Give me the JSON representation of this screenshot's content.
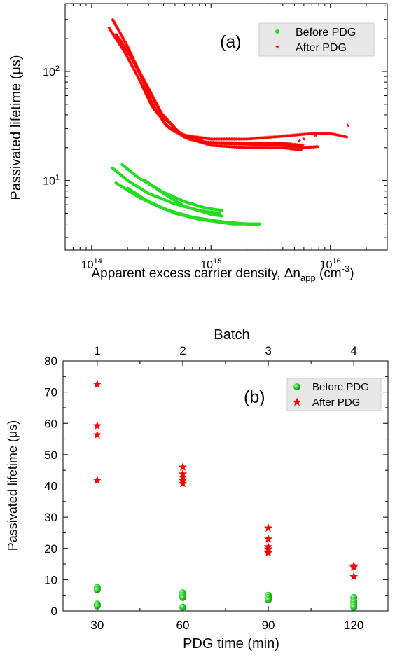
{
  "chart_data": [
    {
      "type": "scatter",
      "panel_label": "(a)",
      "xlabel": "Apparent excess carrier density, Δn",
      "xlabel_sub": "app",
      "xlabel_unit_open": " (cm",
      "xlabel_unit_sup": "-3",
      "xlabel_unit_close": ")",
      "ylabel": "Passivated lifetime (μs)",
      "x_scale": "log",
      "y_scale": "log",
      "xlim": [
        60000000000000.0,
        3e+16
      ],
      "ylim": [
        2.3,
        420
      ],
      "x_ticks": [
        {
          "value": 100000000000000.0,
          "base": "10",
          "exp": "14"
        },
        {
          "value": 1000000000000000.0,
          "base": "10",
          "exp": "15"
        },
        {
          "value": 1e+16,
          "base": "10",
          "exp": "16"
        }
      ],
      "y_ticks": [
        {
          "value": 10,
          "base": "10",
          "exp": "1"
        },
        {
          "value": 100,
          "base": "10",
          "exp": "2"
        }
      ],
      "legend_position": "top-right",
      "grid": false,
      "series": [
        {
          "name": "Before PDG",
          "color": "#22dd22",
          "marker": "circle",
          "curves": [
            [
              [
                150000000000000.0,
                13.0
              ],
              [
                200000000000000.0,
                10.0
              ],
              [
                300000000000000.0,
                7.6
              ],
              [
                500000000000000.0,
                6.1
              ],
              [
                800000000000000.0,
                5.3
              ],
              [
                1200000000000000.0,
                5.0
              ]
            ],
            [
              [
                180000000000000.0,
                14.0
              ],
              [
                250000000000000.0,
                10.5
              ],
              [
                400000000000000.0,
                7.8
              ],
              [
                600000000000000.0,
                6.4
              ],
              [
                900000000000000.0,
                5.6
              ],
              [
                1250000000000000.0,
                5.3
              ]
            ],
            [
              [
                280000000000000.0,
                10.0
              ],
              [
                400000000000000.0,
                7.6
              ],
              [
                600000000000000.0,
                5.8
              ],
              [
                1000000000000000.0,
                4.9
              ],
              [
                1250000000000000.0,
                4.7
              ]
            ],
            [
              [
                200000000000000.0,
                8.5
              ],
              [
                300000000000000.0,
                6.4
              ],
              [
                500000000000000.0,
                5.0
              ],
              [
                800000000000000.0,
                4.4
              ],
              [
                1500000000000000.0,
                4.0
              ],
              [
                2600000000000000.0,
                4.0
              ]
            ],
            [
              [
                160000000000000.0,
                9.5
              ],
              [
                250000000000000.0,
                7.0
              ],
              [
                400000000000000.0,
                5.5
              ],
              [
                700000000000000.0,
                4.6
              ],
              [
                1200000000000000.0,
                4.2
              ],
              [
                2500000000000000.0,
                3.9
              ]
            ]
          ]
        },
        {
          "name": "After PDG",
          "color": "#ff0000",
          "marker": "star",
          "curves": [
            [
              [
                150000000000000.0,
                300.0
              ],
              [
                200000000000000.0,
                170.0
              ],
              [
                250000000000000.0,
                100.0
              ],
              [
                320000000000000.0,
                52.0
              ],
              [
                420000000000000.0,
                32.0
              ],
              [
                600000000000000.0,
                26.0
              ],
              [
                1000000000000000.0,
                24.0
              ],
              [
                2000000000000000.0,
                24.0
              ],
              [
                4000000000000000.0,
                25.5
              ],
              [
                7000000000000000.0,
                27.0
              ],
              [
                1e+16,
                27.0
              ],
              [
                1.4e+16,
                25.0
              ]
            ],
            [
              [
                140000000000000.0,
                250.0
              ],
              [
                190000000000000.0,
                150.0
              ],
              [
                250000000000000.0,
                85.0
              ],
              [
                320000000000000.0,
                48.0
              ],
              [
                450000000000000.0,
                30.0
              ],
              [
                650000000000000.0,
                24.0
              ],
              [
                1000000000000000.0,
                22.0
              ],
              [
                2000000000000000.0,
                21.5
              ],
              [
                4000000000000000.0,
                21.0
              ],
              [
                6000000000000000.0,
                20.0
              ],
              [
                8000000000000000.0,
                20.5
              ]
            ],
            [
              [
                170000000000000.0,
                200.0
              ],
              [
                220000000000000.0,
                130.0
              ],
              [
                300000000000000.0,
                70.0
              ],
              [
                400000000000000.0,
                38.0
              ],
              [
                600000000000000.0,
                25.0
              ],
              [
                1000000000000000.0,
                21.0
              ],
              [
                2000000000000000.0,
                20.0
              ],
              [
                4000000000000000.0,
                20.0
              ],
              [
                5800000000000000.0,
                19.0
              ]
            ],
            [
              [
                160000000000000.0,
                220.0
              ],
              [
                210000000000000.0,
                140.0
              ],
              [
                280000000000000.0,
                78.0
              ],
              [
                380000000000000.0,
                42.0
              ],
              [
                550000000000000.0,
                27.0
              ],
              [
                900000000000000.0,
                22.5
              ],
              [
                2000000000000000.0,
                22.0
              ],
              [
                4000000000000000.0,
                22.0
              ],
              [
                6000000000000000.0,
                21.0
              ]
            ]
          ],
          "outliers": [
            [
              1.4e+16,
              32.0
            ],
            [
              7500000000000000.0,
              26.0
            ],
            [
              6000000000000000.0,
              24.0
            ],
            [
              5500000000000000.0,
              23.0
            ]
          ]
        }
      ]
    },
    {
      "type": "scatter",
      "panel_label": "(b)",
      "xlabel": "PDG time (min)",
      "ylabel": "Passivated lifetime (μs)",
      "top_axis_label": "Batch",
      "top_ticks": [
        "1",
        "2",
        "3",
        "4"
      ],
      "x_ticks": [
        30,
        60,
        90,
        120
      ],
      "y_ticks": [
        0,
        10,
        20,
        30,
        40,
        50,
        60,
        70,
        80
      ],
      "xlim": [
        18,
        132
      ],
      "ylim": [
        0,
        80
      ],
      "legend_position": "top-right",
      "grid": false,
      "series": [
        {
          "name": "Before PDG",
          "color": "#33dd33",
          "marker": "sphere",
          "points": [
            [
              30,
              7.5
            ],
            [
              30,
              6.8
            ],
            [
              30,
              2.2
            ],
            [
              30,
              1.6
            ],
            [
              60,
              5.8
            ],
            [
              60,
              5.0
            ],
            [
              60,
              4.3
            ],
            [
              60,
              1.2
            ],
            [
              90,
              5.0
            ],
            [
              90,
              4.3
            ],
            [
              90,
              3.6
            ],
            [
              120,
              4.3
            ],
            [
              120,
              3.0
            ],
            [
              120,
              2.0
            ],
            [
              120,
              1.2
            ]
          ]
        },
        {
          "name": "After PDG",
          "color": "#ff0000",
          "marker": "star",
          "points": [
            [
              30,
              72.5
            ],
            [
              30,
              59.2
            ],
            [
              30,
              56.3
            ],
            [
              30,
              41.8
            ],
            [
              60,
              46.0
            ],
            [
              60,
              43.8
            ],
            [
              60,
              42.8
            ],
            [
              60,
              41.8
            ],
            [
              60,
              40.8
            ],
            [
              90,
              26.5
            ],
            [
              90,
              23.0
            ],
            [
              90,
              20.5
            ],
            [
              90,
              19.8
            ],
            [
              90,
              18.6
            ],
            [
              120,
              14.4
            ],
            [
              120,
              14.0
            ],
            [
              120,
              11.0
            ]
          ]
        }
      ]
    }
  ]
}
